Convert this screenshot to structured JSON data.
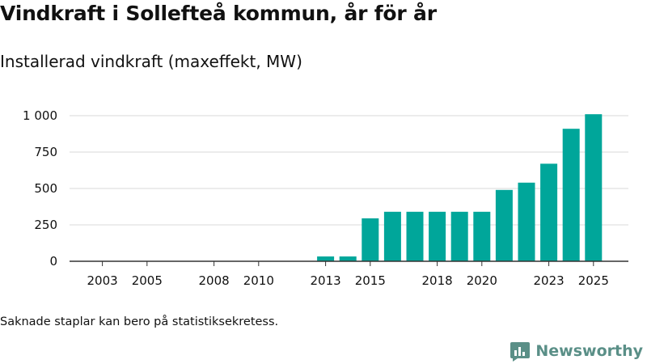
{
  "header": {
    "title": "Vindkraft i Sollefteå kommun, år för år",
    "subtitle": "Installerad vindkraft (maxeffekt, MW)"
  },
  "footnote": "Saknade staplar kan bero på statistiksekretess.",
  "brand": {
    "name": "Newsworthy",
    "icon": "newsworthy-logo-icon"
  },
  "colors": {
    "bar": "#00a69a",
    "grid": "#d9d9d9",
    "axis": "#333333",
    "brand": "#5a8f87"
  },
  "chart_data": {
    "type": "bar",
    "title": "Installerad vindkraft (maxeffekt, MW)",
    "xlabel": "",
    "ylabel": "",
    "ylim": [
      0,
      1000
    ],
    "yticks": [
      0,
      250,
      500,
      750,
      1000
    ],
    "ytick_labels": [
      "0",
      "250",
      "500",
      "750",
      "1 000"
    ],
    "categories": [
      "2002",
      "2003",
      "2004",
      "2005",
      "2006",
      "2007",
      "2008",
      "2009",
      "2010",
      "2011",
      "2012",
      "2013",
      "2014",
      "2015",
      "2016",
      "2017",
      "2018",
      "2019",
      "2020",
      "2021",
      "2022",
      "2023",
      "2024",
      "2025"
    ],
    "values": [
      null,
      null,
      null,
      null,
      null,
      null,
      null,
      null,
      null,
      null,
      null,
      33,
      33,
      295,
      340,
      340,
      340,
      340,
      340,
      490,
      540,
      670,
      910,
      1010
    ],
    "xtick_labels": [
      "2003",
      "2005",
      "2008",
      "2010",
      "2013",
      "2015",
      "2018",
      "2020",
      "2023",
      "2025"
    ],
    "grid": true,
    "legend": "none"
  }
}
